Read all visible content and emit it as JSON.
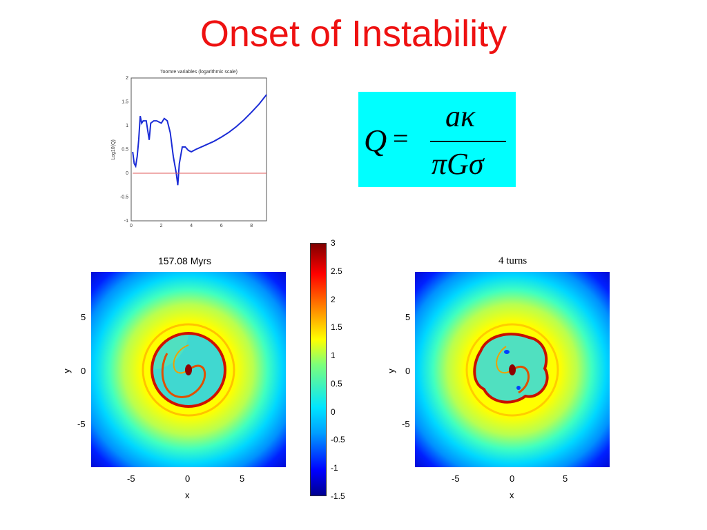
{
  "title": "Onset of Instability",
  "toomre_plot": {
    "title": "Toomre variables (logarithmic scale)",
    "ylabel": "Log10(Q)",
    "xticks": [
      "0",
      "2",
      "4",
      "6",
      "8"
    ],
    "yticks": [
      "2",
      "1.5",
      "1",
      "0.5",
      "0",
      "-0.5",
      "-1"
    ]
  },
  "formula": {
    "lhs": "Q",
    "eq": "=",
    "numerator": "aκ",
    "denominator": "πGσ"
  },
  "left_panel": {
    "title": "157.08 Myrs",
    "xlabel": "x",
    "ylabel": "y",
    "xticks": [
      "-5",
      "0",
      "5"
    ],
    "yticks": [
      "5",
      "0",
      "-5"
    ]
  },
  "right_panel": {
    "title": "4 turns",
    "xlabel": "x",
    "ylabel": "y",
    "xticks": [
      "-5",
      "0",
      "5"
    ],
    "yticks": [
      "5",
      "0",
      "-5"
    ]
  },
  "colorbar": {
    "ticks": [
      "3",
      "2.5",
      "2",
      "1.5",
      "1",
      "0.5",
      "0",
      "-0.5",
      "-1",
      "-1.5"
    ],
    "range": [
      -1.5,
      3
    ]
  },
  "chart_data": {
    "type": "line",
    "title": "Toomre variables (logarithmic scale)",
    "xlabel": "",
    "ylabel": "Log10(Q)",
    "xlim": [
      0,
      9
    ],
    "ylim": [
      -1,
      2
    ],
    "x": [
      0.1,
      0.2,
      0.3,
      0.4,
      0.5,
      0.6,
      0.7,
      0.8,
      1.0,
      1.2,
      1.3,
      1.5,
      1.7,
      2.0,
      2.2,
      2.4,
      2.6,
      2.8,
      3.0,
      3.1,
      3.2,
      3.4,
      3.6,
      3.8,
      4.0,
      4.3,
      4.8,
      5.5,
      6.0,
      6.5,
      7.0,
      7.5,
      8.0,
      8.5,
      9.0
    ],
    "series": [
      {
        "values": [
          0.45,
          0.2,
          0.15,
          0.35,
          0.7,
          1.2,
          1.05,
          1.1,
          1.1,
          0.7,
          1.05,
          1.1,
          1.1,
          1.05,
          1.15,
          1.1,
          0.85,
          0.35,
          0.0,
          -0.25,
          0.2,
          0.55,
          0.55,
          0.48,
          0.45,
          0.5,
          0.57,
          0.67,
          0.76,
          0.86,
          0.98,
          1.12,
          1.28,
          1.45,
          1.65
        ]
      },
      {
        "values": [
          0,
          0,
          0,
          0,
          0,
          0,
          0,
          0,
          0,
          0,
          0,
          0,
          0,
          0,
          0,
          0,
          0,
          0,
          0,
          0,
          0,
          0,
          0,
          0,
          0,
          0,
          0,
          0,
          0,
          0,
          0,
          0,
          0,
          0,
          0
        ]
      }
    ],
    "colors": [
      "#1a2bd6",
      "#e05a5a"
    ]
  }
}
